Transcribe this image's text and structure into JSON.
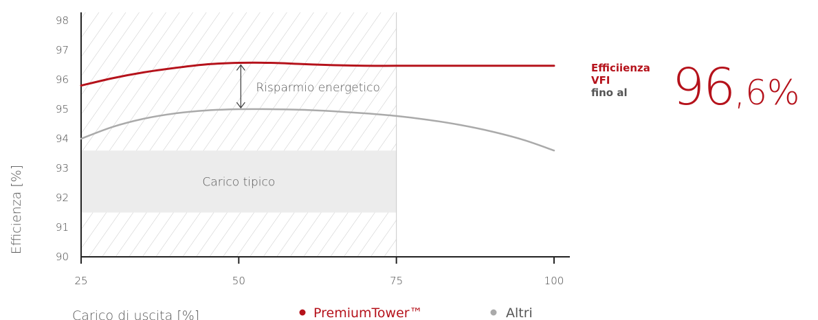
{
  "chart_data": {
    "type": "line",
    "xlabel": "Carico di uscita [%]",
    "ylabel": "Efficienza [%]",
    "x_ticks": [
      25,
      50,
      75,
      100
    ],
    "y_ticks": [
      90,
      91,
      92,
      93,
      94,
      95,
      96,
      97,
      98
    ],
    "xlim": [
      25,
      101.5
    ],
    "ylim": [
      90,
      98.3
    ],
    "grid": false,
    "legend_position": "bottom",
    "series": [
      {
        "name": "PremiumTower™",
        "color": "#b5121b",
        "x": [
          25,
          30,
          35,
          40,
          45,
          50,
          55,
          60,
          65,
          70,
          75,
          80,
          90,
          100
        ],
        "y": [
          95.8,
          96.05,
          96.25,
          96.4,
          96.52,
          96.57,
          96.57,
          96.53,
          96.49,
          96.47,
          96.47,
          96.47,
          96.47,
          96.47
        ]
      },
      {
        "name": "Altri",
        "color": "#aaaaaa",
        "x": [
          25,
          30,
          35,
          40,
          45,
          50,
          55,
          60,
          65,
          70,
          75,
          80,
          85,
          90,
          95,
          100
        ],
        "y": [
          94.0,
          94.4,
          94.68,
          94.86,
          94.96,
          95.0,
          95.0,
          94.98,
          94.93,
          94.86,
          94.77,
          94.64,
          94.47,
          94.25,
          93.97,
          93.6
        ]
      }
    ],
    "annotations": {
      "savings_label": "Risparmio energetico",
      "savings_arrow": {
        "x": 50,
        "y_from": 95.0,
        "y_to": 96.57
      },
      "hatched_region": {
        "x_from": 25,
        "x_to": 75
      },
      "typical_load_label": "Carico tipico",
      "typical_load_box": {
        "x_from": 25,
        "x_to": 75,
        "y_from": 91.5,
        "y_to": 93.6
      }
    }
  },
  "callout": {
    "label_line1": "Efficiienza",
    "label_line2": "VFI",
    "label_line3": "fino al",
    "value_int": "96",
    "value_dec": ",6%"
  },
  "legend": [
    {
      "label": "PremiumTower™",
      "color": "#b5121b"
    },
    {
      "label": "Altri",
      "color": "#aaaaaa"
    }
  ]
}
